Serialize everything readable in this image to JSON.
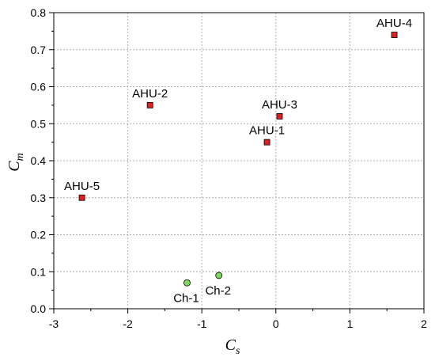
{
  "chart_data": {
    "type": "scatter",
    "title": "",
    "xlabel": {
      "main": "C",
      "sub": "s"
    },
    "ylabel": {
      "main": "C",
      "sub": "m"
    },
    "xlim": [
      -3,
      2
    ],
    "ylim": [
      0,
      0.8
    ],
    "x_ticks": [
      -3,
      -2,
      -1,
      0,
      1,
      2
    ],
    "y_ticks": [
      0.0,
      0.1,
      0.2,
      0.3,
      0.4,
      0.5,
      0.6,
      0.7,
      0.8
    ],
    "x_tick_labels": [
      "-3",
      "-2",
      "-1",
      "0",
      "1",
      "2"
    ],
    "y_tick_labels": [
      "0.0",
      "0.1",
      "0.2",
      "0.3",
      "0.4",
      "0.5",
      "0.6",
      "0.7",
      "0.8"
    ],
    "grid": true,
    "series": [
      {
        "marker": "square",
        "color": "#e02020",
        "points": [
          {
            "label": "AHU-4",
            "x": 1.6,
            "y": 0.74
          },
          {
            "label": "AHU-2",
            "x": -1.7,
            "y": 0.55
          },
          {
            "label": "AHU-3",
            "x": 0.05,
            "y": 0.52
          },
          {
            "label": "AHU-1",
            "x": -0.12,
            "y": 0.45
          },
          {
            "label": "AHU-5",
            "x": -2.62,
            "y": 0.3
          }
        ]
      },
      {
        "marker": "circle",
        "color": "#7ed957",
        "points": [
          {
            "label": "Ch-1",
            "x": -1.2,
            "y": 0.07
          },
          {
            "label": "Ch-2",
            "x": -0.77,
            "y": 0.09
          }
        ]
      }
    ]
  }
}
